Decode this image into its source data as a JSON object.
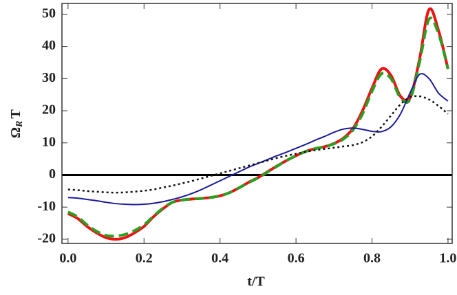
{
  "chart_data": {
    "type": "line",
    "xlabel": "t/T",
    "ylabel": [
      "Ω",
      "R",
      "T"
    ],
    "xlim": [
      -0.016,
      1.011
    ],
    "ylim": [
      -21.3,
      53.4
    ],
    "xticks": [
      {
        "value": 0,
        "label": "0.0"
      },
      0.2,
      0.4,
      0.6,
      0.8,
      {
        "value": 1,
        "label": "1.0"
      }
    ],
    "yticks": [
      -20,
      -10,
      0,
      10,
      20,
      30,
      40,
      50
    ],
    "hline": 0,
    "x": [
      0,
      0.025,
      0.05,
      0.075,
      0.1,
      0.125,
      0.15,
      0.175,
      0.2,
      0.225,
      0.25,
      0.275,
      0.3,
      0.325,
      0.35,
      0.375,
      0.4,
      0.425,
      0.45,
      0.475,
      0.5,
      0.525,
      0.55,
      0.575,
      0.6,
      0.625,
      0.65,
      0.675,
      0.7,
      0.725,
      0.75,
      0.775,
      0.8,
      0.825,
      0.85,
      0.875,
      0.9,
      0.925,
      0.95,
      0.975,
      1
    ],
    "series": [
      {
        "color": "#ee1111",
        "style": "solid",
        "width": 4,
        "values": [
          -12,
          -13.5,
          -16,
          -18,
          -19.5,
          -20,
          -19.5,
          -18,
          -16,
          -13,
          -10.5,
          -8.5,
          -7.8,
          -7.5,
          -7.3,
          -7,
          -6.5,
          -5.5,
          -4,
          -2.3,
          -0.8,
          1,
          2.8,
          4.5,
          6,
          7.3,
          8.2,
          8.8,
          9.8,
          11.5,
          14.5,
          20,
          27,
          33,
          31,
          24.5,
          24,
          36,
          51.5,
          45,
          33
        ]
      },
      {
        "color": "#2e9e22",
        "style": "dashed",
        "width": 4,
        "values": [
          -11.5,
          -13,
          -15.5,
          -17.5,
          -18.8,
          -19,
          -18.5,
          -17.3,
          -15.5,
          -12.8,
          -10.3,
          -8.5,
          -7.8,
          -7.5,
          -7.3,
          -7,
          -6.5,
          -5.5,
          -4,
          -2.4,
          -0.9,
          0.9,
          2.7,
          4.5,
          6,
          7.3,
          8.2,
          8.8,
          9.7,
          11.2,
          14,
          19,
          26,
          31.5,
          30,
          24,
          23.5,
          35,
          48.5,
          44,
          33
        ]
      },
      {
        "color": "#1a1a99",
        "style": "solid",
        "width": 2,
        "values": [
          -7,
          -7.2,
          -7.6,
          -8,
          -8.5,
          -8.9,
          -9.1,
          -9.2,
          -9.1,
          -8.8,
          -8.3,
          -7.6,
          -6.8,
          -5.8,
          -4.6,
          -3.2,
          -1.8,
          -0.4,
          1,
          2.4,
          3.6,
          4.8,
          6,
          7.1,
          8.3,
          9.5,
          10.8,
          12,
          13.3,
          14.3,
          14.6,
          14.2,
          13.6,
          13.5,
          15,
          19,
          25.5,
          31.3,
          30,
          25.5,
          23
        ]
      },
      {
        "color": "#111111",
        "style": "dotted",
        "width": 2.5,
        "values": [
          -4.5,
          -4.7,
          -5,
          -5.2,
          -5.4,
          -5.5,
          -5.4,
          -5.2,
          -4.9,
          -4.5,
          -3.9,
          -3.3,
          -2.6,
          -1.9,
          -1.1,
          -0.3,
          0.5,
          1.3,
          2.1,
          2.9,
          3.7,
          4.5,
          5.3,
          6,
          6.6,
          7.2,
          7.7,
          8.1,
          8.5,
          8.9,
          9.3,
          10.2,
          12,
          15,
          18.5,
          22,
          24.2,
          24.5,
          23.5,
          21.5,
          19
        ]
      }
    ]
  }
}
